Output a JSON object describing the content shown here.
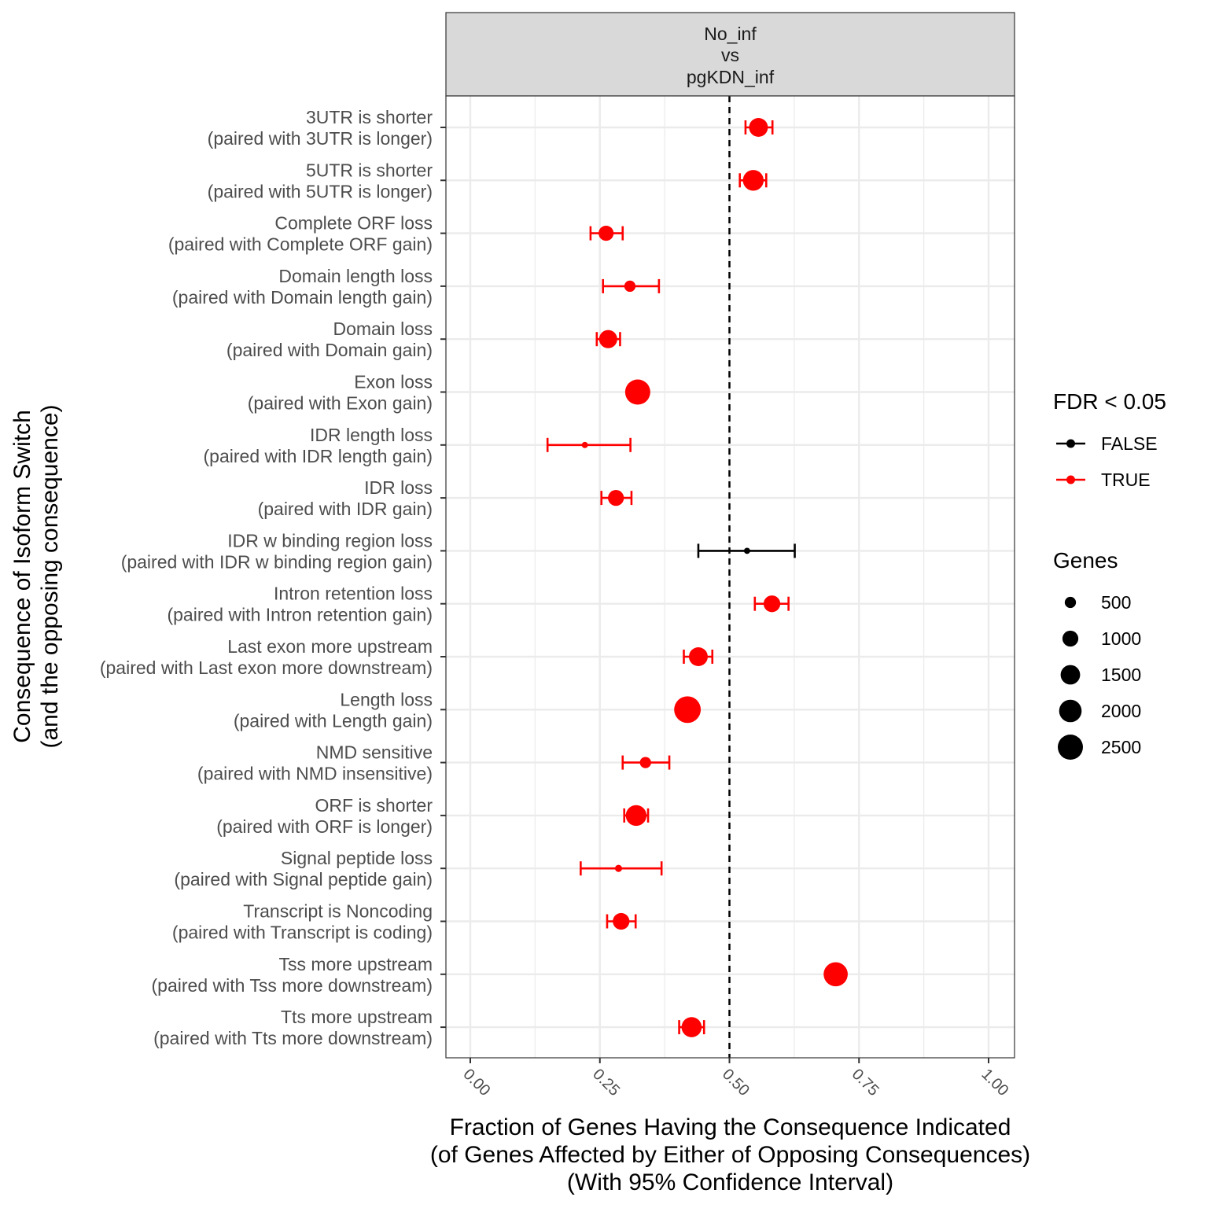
{
  "chart_data": {
    "type": "scatter",
    "facet_label": [
      "No_inf",
      "vs",
      "pgKDN_inf"
    ],
    "xlabel": [
      "Fraction of Genes Having the Consequence Indicated",
      "(of Genes Affected by Either of Opposing Consequences)",
      "(With 95% Confidence Interval)"
    ],
    "ylabel": [
      "Consequence of Isoform Switch",
      "(and the opposing consequence)"
    ],
    "xlim": [
      -0.05,
      1.05
    ],
    "xticks": [
      "0.00",
      "0.25",
      "0.50",
      "0.75",
      "1.00"
    ],
    "xtick_values": [
      0,
      0.25,
      0.5,
      0.75,
      1.0
    ],
    "reference_line": 0.5,
    "grid": true,
    "points": [
      {
        "label": [
          "3UTR is shorter",
          "(paired with 3UTR is longer)"
        ],
        "value": 0.556,
        "lo": 0.531,
        "hi": 0.583,
        "genes": 1400,
        "significant": true
      },
      {
        "label": [
          "5UTR is shorter",
          "(paired with 5UTR is longer)"
        ],
        "value": 0.546,
        "lo": 0.52,
        "hi": 0.571,
        "genes": 1700,
        "significant": true
      },
      {
        "label": [
          "Complete ORF loss",
          "(paired with Complete ORF gain)"
        ],
        "value": 0.262,
        "lo": 0.232,
        "hi": 0.294,
        "genes": 900,
        "significant": true
      },
      {
        "label": [
          "Domain length loss",
          "(paired with Domain length gain)"
        ],
        "value": 0.308,
        "lo": 0.256,
        "hi": 0.364,
        "genes": 500,
        "significant": true
      },
      {
        "label": [
          "Domain loss",
          "(paired with Domain gain)"
        ],
        "value": 0.266,
        "lo": 0.244,
        "hi": 0.289,
        "genes": 1300,
        "significant": true
      },
      {
        "label": [
          "Exon loss",
          "(paired with Exon gain)"
        ],
        "value": 0.323,
        "lo": 0.306,
        "hi": 0.341,
        "genes": 2500,
        "significant": true
      },
      {
        "label": [
          "IDR length loss",
          "(paired with IDR length gain)"
        ],
        "value": 0.221,
        "lo": 0.149,
        "hi": 0.309,
        "genes": 150,
        "significant": true
      },
      {
        "label": [
          "IDR loss",
          "(paired with IDR gain)"
        ],
        "value": 0.281,
        "lo": 0.253,
        "hi": 0.311,
        "genes": 1000,
        "significant": true
      },
      {
        "label": [
          "IDR w binding region loss",
          "(paired with IDR w binding region gain)"
        ],
        "value": 0.534,
        "lo": 0.44,
        "hi": 0.626,
        "genes": 150,
        "significant": false
      },
      {
        "label": [
          "Intron retention loss",
          "(paired with Intron retention gain)"
        ],
        "value": 0.582,
        "lo": 0.549,
        "hi": 0.614,
        "genes": 1100,
        "significant": true
      },
      {
        "label": [
          "Last exon more upstream",
          "(paired with Last exon more downstream)"
        ],
        "value": 0.44,
        "lo": 0.412,
        "hi": 0.467,
        "genes": 1400,
        "significant": true
      },
      {
        "label": [
          "Length loss",
          "(paired with Length gain)"
        ],
        "value": 0.419,
        "lo": 0.401,
        "hi": 0.437,
        "genes": 2800,
        "significant": true
      },
      {
        "label": [
          "NMD sensitive",
          "(paired with NMD insensitive)"
        ],
        "value": 0.338,
        "lo": 0.294,
        "hi": 0.384,
        "genes": 500,
        "significant": true
      },
      {
        "label": [
          "ORF is shorter",
          "(paired with ORF is longer)"
        ],
        "value": 0.32,
        "lo": 0.297,
        "hi": 0.343,
        "genes": 1700,
        "significant": true
      },
      {
        "label": [
          "Signal peptide loss",
          "(paired with Signal peptide gain)"
        ],
        "value": 0.286,
        "lo": 0.213,
        "hi": 0.369,
        "genes": 200,
        "significant": true
      },
      {
        "label": [
          "Transcript is Noncoding",
          "(paired with Transcript is coding)"
        ],
        "value": 0.291,
        "lo": 0.264,
        "hi": 0.319,
        "genes": 1100,
        "significant": true
      },
      {
        "label": [
          "Tss more upstream",
          "(paired with Tss more downstream)"
        ],
        "value": 0.705,
        "lo": 0.689,
        "hi": 0.72,
        "genes": 2300,
        "significant": true
      },
      {
        "label": [
          "Tts more upstream",
          "(paired with Tts more downstream)"
        ],
        "value": 0.427,
        "lo": 0.403,
        "hi": 0.451,
        "genes": 1600,
        "significant": true
      }
    ],
    "legend_color": {
      "title": "FDR < 0.05",
      "entries": [
        {
          "label": "FALSE",
          "color": "#000000"
        },
        {
          "label": "TRUE",
          "color": "#ff0000"
        }
      ]
    },
    "legend_size": {
      "title": "Genes",
      "entries": [
        {
          "label": "500",
          "value": 500
        },
        {
          "label": "1000",
          "value": 1000
        },
        {
          "label": "1500",
          "value": 1500
        },
        {
          "label": "2000",
          "value": 2000
        },
        {
          "label": "2500",
          "value": 2500
        }
      ]
    },
    "legend_position": "right"
  }
}
